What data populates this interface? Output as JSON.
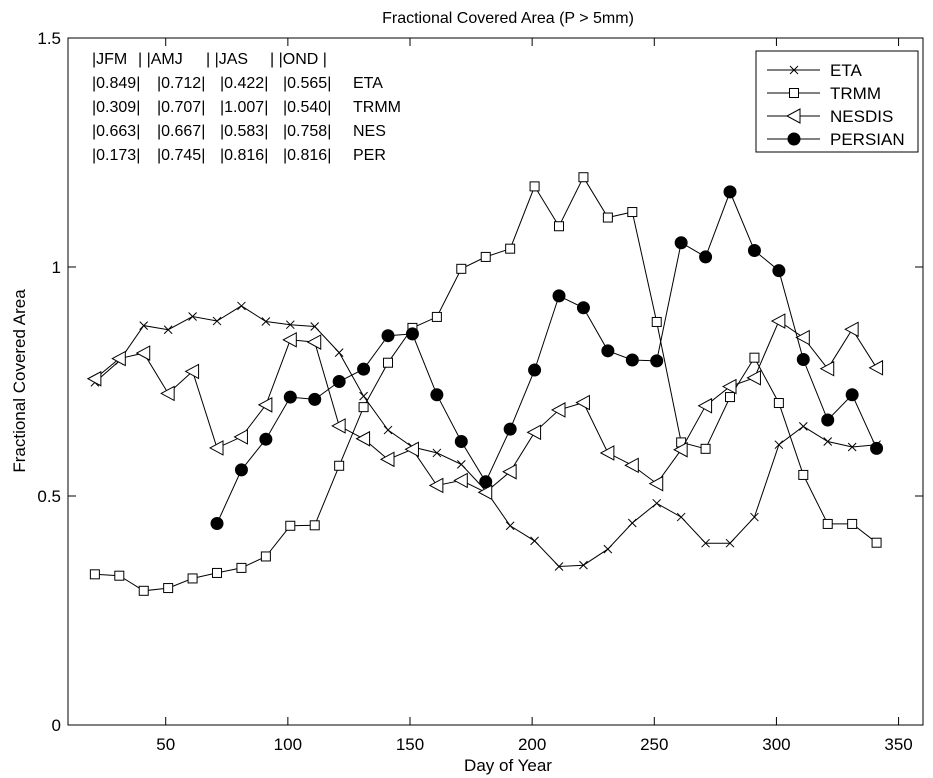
{
  "chart_data": {
    "type": "line",
    "title": "Fractional Covered Area (P > 5mm)",
    "xlabel": "Day of Year",
    "ylabel": "Fractional Covered Area",
    "xlim": [
      10,
      360
    ],
    "ylim": [
      0,
      1.5
    ],
    "xticks": [
      50,
      100,
      150,
      200,
      250,
      300,
      350
    ],
    "yticks": [
      0,
      0.5,
      1,
      1.5
    ],
    "ytick_labels": [
      "0",
      "0.5",
      "1",
      "1.5"
    ],
    "grid": false,
    "legend_position": "top-right",
    "series": [
      {
        "name": "ETA",
        "marker": "x",
        "x": [
          21,
          31,
          41,
          51,
          61,
          71,
          81,
          91,
          101,
          111,
          121,
          131,
          141,
          151,
          161,
          171,
          181,
          191,
          201,
          211,
          221,
          231,
          241,
          251,
          261,
          271,
          281,
          291,
          301,
          311,
          321,
          331,
          341
        ],
        "y": [
          0.748,
          0.795,
          0.872,
          0.863,
          0.892,
          0.882,
          0.915,
          0.881,
          0.874,
          0.87,
          0.813,
          0.718,
          0.644,
          0.607,
          0.594,
          0.569,
          0.512,
          0.435,
          0.402,
          0.346,
          0.349,
          0.384,
          0.441,
          0.484,
          0.454,
          0.397,
          0.397,
          0.454,
          0.612,
          0.652,
          0.619,
          0.607,
          0.612
        ]
      },
      {
        "name": "TRMM",
        "marker": "square",
        "x": [
          21,
          31,
          41,
          51,
          61,
          71,
          81,
          91,
          101,
          111,
          121,
          131,
          141,
          151,
          161,
          171,
          181,
          191,
          201,
          211,
          221,
          231,
          241,
          251,
          261,
          271,
          281,
          291,
          301,
          311,
          321,
          331,
          341
        ],
        "y": [
          0.329,
          0.326,
          0.293,
          0.299,
          0.32,
          0.332,
          0.343,
          0.368,
          0.435,
          0.436,
          0.566,
          0.694,
          0.791,
          0.867,
          0.891,
          0.996,
          1.022,
          1.04,
          1.176,
          1.089,
          1.196,
          1.108,
          1.12,
          0.88,
          0.617,
          0.603,
          0.716,
          0.802,
          0.703,
          0.546,
          0.439,
          0.439,
          0.398
        ]
      },
      {
        "name": "NESDIS",
        "marker": "triangle-left",
        "x": [
          21,
          31,
          41,
          51,
          61,
          71,
          81,
          91,
          101,
          111,
          121,
          131,
          141,
          151,
          161,
          171,
          181,
          191,
          201,
          211,
          221,
          231,
          241,
          251,
          261,
          271,
          281,
          291,
          301,
          311,
          321,
          331,
          341
        ],
        "y": [
          0.756,
          0.8,
          0.812,
          0.724,
          0.772,
          0.605,
          0.629,
          0.699,
          0.841,
          0.836,
          0.653,
          0.625,
          0.58,
          0.602,
          0.523,
          0.534,
          0.508,
          0.553,
          0.639,
          0.688,
          0.704,
          0.594,
          0.567,
          0.527,
          0.601,
          0.697,
          0.739,
          0.758,
          0.882,
          0.846,
          0.778,
          0.864,
          0.78
        ]
      },
      {
        "name": "PERSIAN",
        "marker": "filled-circle",
        "x": [
          71,
          81,
          91,
          101,
          111,
          121,
          131,
          141,
          151,
          161,
          171,
          181,
          191,
          201,
          211,
          221,
          231,
          241,
          251,
          261,
          271,
          281,
          291,
          301,
          311,
          321,
          331,
          341
        ],
        "y": [
          0.44,
          0.557,
          0.624,
          0.716,
          0.711,
          0.75,
          0.777,
          0.85,
          0.854,
          0.721,
          0.619,
          0.531,
          0.646,
          0.775,
          0.937,
          0.911,
          0.817,
          0.797,
          0.795,
          1.053,
          1.022,
          1.164,
          1.036,
          0.992,
          0.798,
          0.666,
          0.721,
          0.604
        ]
      }
    ],
    "annotation_table": {
      "header": [
        "|JFM",
        "| |AMJ",
        "| |JAS",
        "| |OND |"
      ],
      "rows": [
        [
          "|0.849|",
          "|0.712|",
          "|0.422|",
          "|0.565|",
          "ETA"
        ],
        [
          "|0.309|",
          "|0.707|",
          "|1.007|",
          "|0.540|",
          "TRMM"
        ],
        [
          "|0.663|",
          "|0.667|",
          "|0.583|",
          "|0.758|",
          "NES"
        ],
        [
          "|0.173|",
          "|0.745|",
          "|0.816|",
          "|0.816|",
          "PER"
        ]
      ]
    }
  }
}
